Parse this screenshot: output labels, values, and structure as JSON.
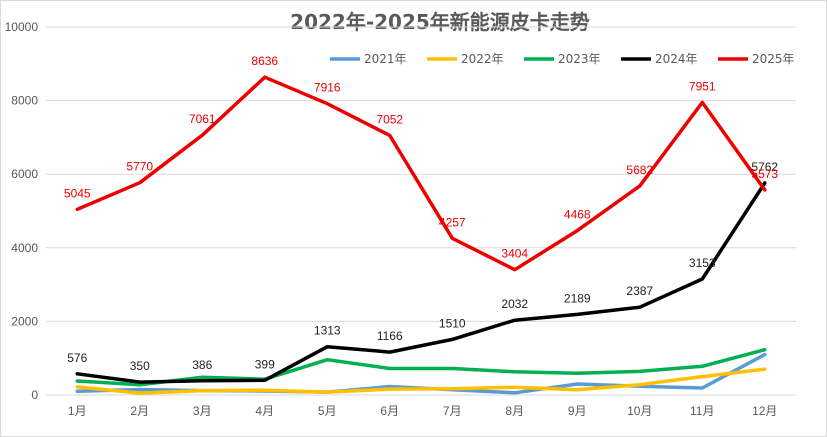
{
  "chart_data": {
    "type": "line",
    "title": "2022年-2025年新能源皮卡走势",
    "xlabel": "",
    "ylabel": "",
    "categories": [
      "1月",
      "2月",
      "3月",
      "4月",
      "5月",
      "6月",
      "7月",
      "8月",
      "9月",
      "10月",
      "11月",
      "12月"
    ],
    "ylim": [
      0,
      10000
    ],
    "yticks": [
      0,
      2000,
      4000,
      6000,
      8000,
      10000
    ],
    "grid": true,
    "legend_position": "top-right",
    "series": [
      {
        "name": "2021年",
        "color": "#5b9bd5",
        "values": [
          100,
          150,
          120,
          110,
          80,
          230,
          140,
          60,
          300,
          240,
          190,
          1100
        ],
        "labels": false
      },
      {
        "name": "2022年",
        "color": "#ffc000",
        "values": [
          220,
          50,
          120,
          130,
          80,
          160,
          170,
          210,
          140,
          280,
          500,
          700
        ],
        "labels": false
      },
      {
        "name": "2023年",
        "color": "#00b050",
        "values": [
          380,
          280,
          480,
          430,
          960,
          720,
          720,
          630,
          590,
          640,
          780,
          1230
        ],
        "labels": false
      },
      {
        "name": "2024年",
        "color": "#000000",
        "values": [
          576,
          350,
          386,
          399,
          1313,
          1166,
          1510,
          2032,
          2189,
          2387,
          3153,
          5762
        ],
        "labels": true
      },
      {
        "name": "2025年",
        "color": "#ee0000",
        "values": [
          5045,
          5770,
          7061,
          8636,
          7916,
          7052,
          4257,
          3404,
          4468,
          5682,
          7951,
          5573
        ],
        "labels": true
      }
    ]
  }
}
